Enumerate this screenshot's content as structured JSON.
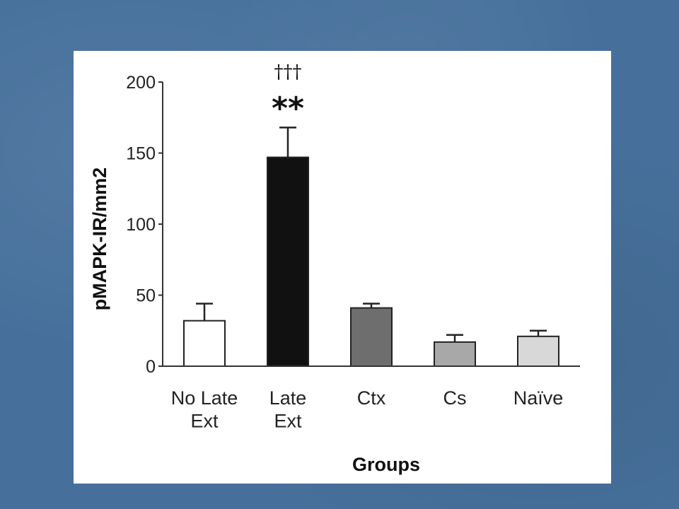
{
  "chart_data": {
    "type": "bar",
    "title": "",
    "xlabel": "Groups",
    "ylabel": "pMAPK-IR/mm2",
    "ylim": [
      0,
      200
    ],
    "yticks": [
      0,
      50,
      100,
      150,
      200
    ],
    "grid": false,
    "categories": [
      [
        "No Late",
        "Ext"
      ],
      [
        "Late",
        "Ext"
      ],
      [
        "Ctx"
      ],
      [
        "Cs"
      ],
      [
        "Naïve"
      ]
    ],
    "values": [
      32,
      147,
      41,
      17,
      21
    ],
    "errors": [
      12,
      21,
      3,
      5,
      4
    ],
    "colors": [
      "#ffffff",
      "#111111",
      "#6e6e6e",
      "#a8a8a8",
      "#d8d8d8"
    ],
    "annotations": [
      {
        "category_index": 1,
        "lines": [
          "†††",
          "**"
        ]
      }
    ]
  }
}
